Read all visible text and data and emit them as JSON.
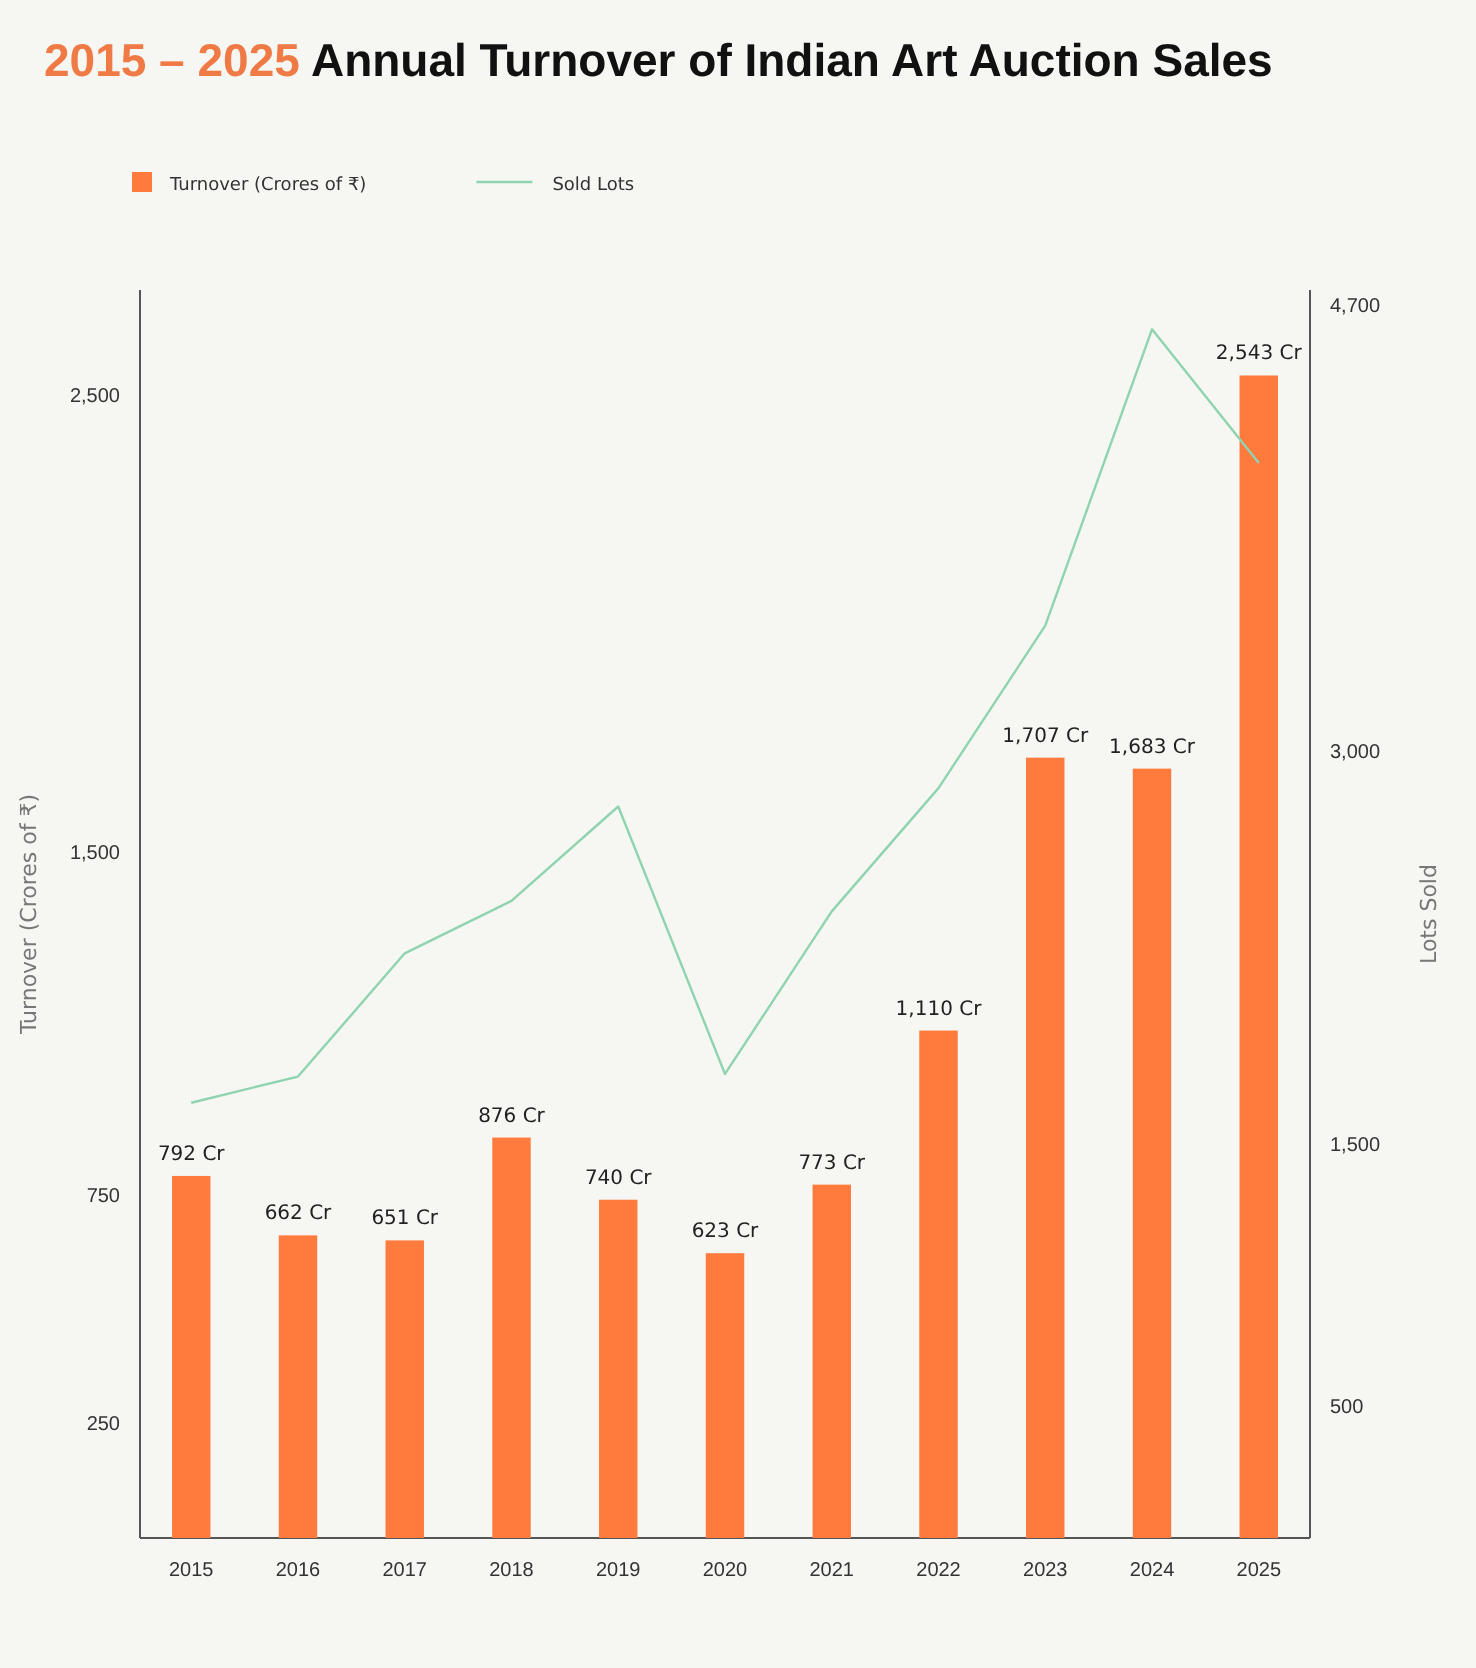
{
  "chart_data": {
    "type": "bar",
    "title": "2015 – 2025 Annual Turnover of Indian Art Auction Sales",
    "ylabel": "Turnover (Crores of ₹)",
    "y2label": "Lots Sold",
    "categories": [
      "2015",
      "2016",
      "2017",
      "2018",
      "2019",
      "2020",
      "2021",
      "2022",
      "2023",
      "2024",
      "2025"
    ],
    "series": [
      {
        "name": "Turnover (Crores of ₹)",
        "color": "#ff7a3d",
        "values": [
          792,
          662,
          651,
          876,
          740,
          623,
          773,
          1110,
          1707,
          1683,
          2543
        ],
        "value_labels": [
          "792 Cr",
          "662 Cr",
          "651 Cr",
          "876 Cr",
          "740 Cr",
          "623 Cr",
          "773 Cr",
          "1,110 Cr",
          "1,707 Cr",
          "1,683 Cr",
          "2,543 Cr"
        ]
      },
      {
        "name": "Sold Lots",
        "type": "line",
        "axis": "y2",
        "color": "#8fd3b0",
        "values": [
          1660,
          1760,
          2230,
          2430,
          2790,
          1770,
          2390,
          2860,
          3480,
          4610,
          4100
        ]
      }
    ],
    "ylim": [
      0,
      2730
    ],
    "yticks": [
      {
        "value": 250,
        "label": "250"
      },
      {
        "value": 750,
        "label": "750"
      },
      {
        "value": 1500,
        "label": "1,500"
      },
      {
        "value": 2500,
        "label": "2,500"
      }
    ],
    "y2lim": [
      0,
      4760
    ],
    "y2ticks": [
      {
        "value": 500,
        "label": "500"
      },
      {
        "value": 1500,
        "label": "1,500"
      },
      {
        "value": 3000,
        "label": "3,000"
      },
      {
        "value": 4700,
        "label": "4,700"
      }
    ],
    "grid": false,
    "legend": "top left",
    "marker": "none",
    "line_style": "solid"
  }
}
